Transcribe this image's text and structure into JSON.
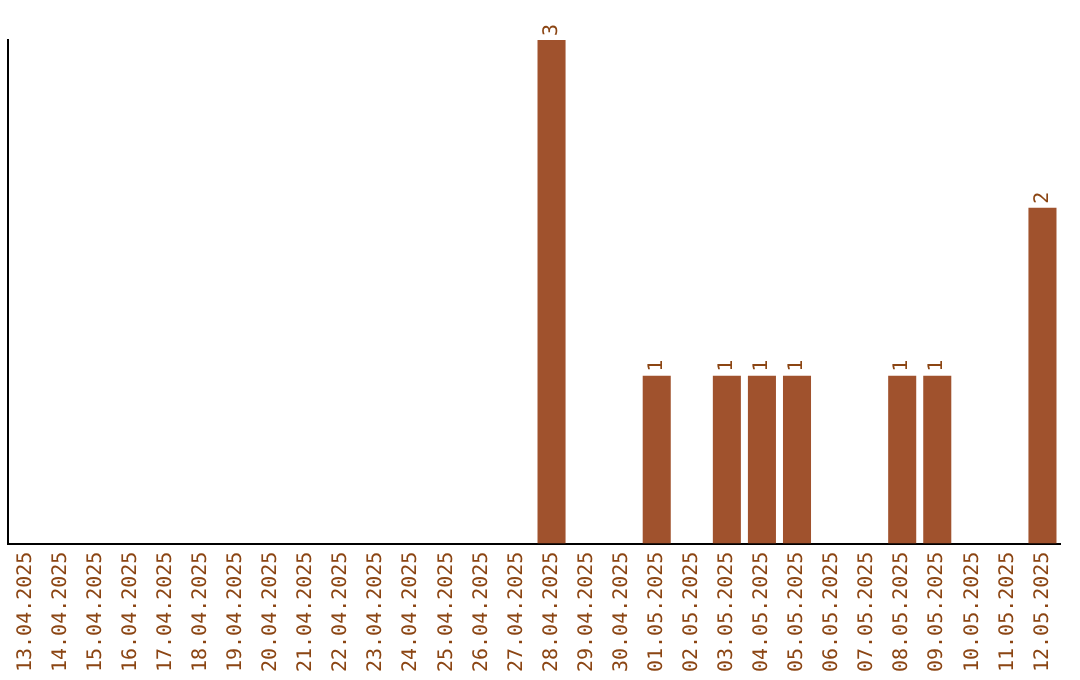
{
  "chart_data": {
    "type": "bar",
    "categories": [
      "13.04.2025",
      "14.04.2025",
      "15.04.2025",
      "16.04.2025",
      "17.04.2025",
      "18.04.2025",
      "19.04.2025",
      "20.04.2025",
      "21.04.2025",
      "22.04.2025",
      "23.04.2025",
      "24.04.2025",
      "25.04.2025",
      "26.04.2025",
      "27.04.2025",
      "28.04.2025",
      "29.04.2025",
      "30.04.2025",
      "01.05.2025",
      "02.05.2025",
      "03.05.2025",
      "04.05.2025",
      "05.05.2025",
      "06.05.2025",
      "07.05.2025",
      "08.05.2025",
      "09.05.2025",
      "10.05.2025",
      "11.05.2025",
      "12.05.2025"
    ],
    "values": [
      null,
      null,
      null,
      null,
      null,
      null,
      null,
      null,
      null,
      null,
      null,
      null,
      null,
      null,
      null,
      3,
      null,
      null,
      1,
      null,
      1,
      1,
      1,
      null,
      null,
      1,
      1,
      null,
      null,
      2
    ],
    "value_labels": [
      null,
      null,
      null,
      null,
      null,
      null,
      null,
      null,
      null,
      null,
      null,
      null,
      null,
      null,
      null,
      "3",
      null,
      null,
      "1",
      null,
      "1",
      "1",
      "1",
      null,
      null,
      "1",
      "1",
      null,
      null,
      "2"
    ],
    "color": "#a0522d",
    "grid": false,
    "legend": false,
    "tick_labels": "x"
  }
}
